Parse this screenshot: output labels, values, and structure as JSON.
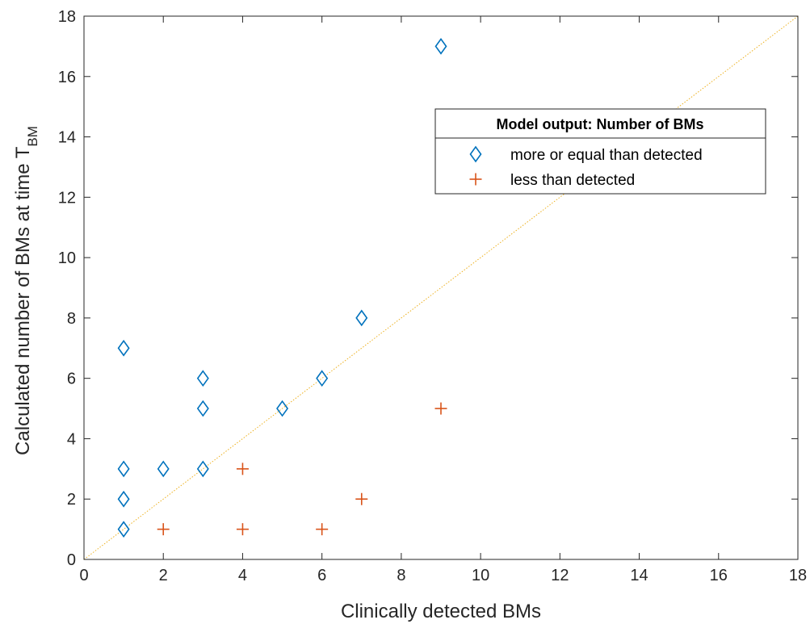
{
  "chart_data": {
    "type": "scatter",
    "xlabel": "Clinically detected BMs",
    "ylabel_main": "Calculated number of BMs at time T",
    "ylabel_sub": "BM",
    "xlim": [
      0,
      18
    ],
    "ylim": [
      0,
      18
    ],
    "xticks": [
      "0",
      "2",
      "4",
      "6",
      "8",
      "10",
      "12",
      "14",
      "16",
      "18"
    ],
    "yticks": [
      "0",
      "2",
      "4",
      "6",
      "8",
      "10",
      "12",
      "14",
      "16",
      "18"
    ],
    "grid": false,
    "reference_line": {
      "x": [
        0,
        18
      ],
      "y": [
        0,
        18
      ],
      "color": "#EDB120",
      "style": "dotted"
    },
    "legend": {
      "title": "Model output: Number of BMs",
      "placement": "upper-right-center"
    },
    "series": [
      {
        "name": "more or equal than detected",
        "marker": "diamond",
        "color": "#0072BD",
        "points": [
          [
            1,
            1
          ],
          [
            1,
            2
          ],
          [
            1,
            3
          ],
          [
            1,
            7
          ],
          [
            2,
            3
          ],
          [
            3,
            3
          ],
          [
            3,
            5
          ],
          [
            3,
            6
          ],
          [
            5,
            5
          ],
          [
            6,
            6
          ],
          [
            7,
            8
          ],
          [
            9,
            17
          ]
        ]
      },
      {
        "name": "less than detected",
        "marker": "plus",
        "color": "#D95319",
        "points": [
          [
            2,
            1
          ],
          [
            4,
            1
          ],
          [
            4,
            3
          ],
          [
            6,
            1
          ],
          [
            7,
            2
          ],
          [
            9,
            5
          ]
        ]
      }
    ]
  }
}
